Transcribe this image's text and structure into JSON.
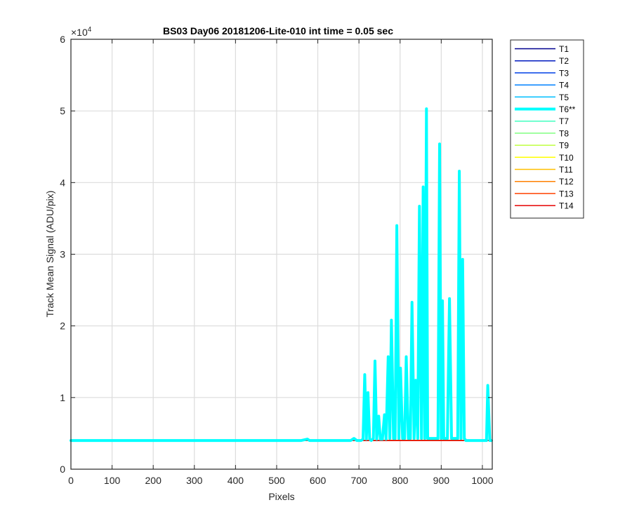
{
  "chart_data": {
    "type": "line",
    "title": "BS03 Day06 20181206-Lite-010 int time = 0.05 sec",
    "xlabel": "Pixels",
    "ylabel": "Track Mean Signal (ADU/pix)",
    "xlim": [
      0,
      1024
    ],
    "ylim": [
      0,
      60000
    ],
    "xticks": [
      0,
      100,
      200,
      300,
      400,
      500,
      600,
      700,
      800,
      900,
      1000
    ],
    "yticks": [
      0,
      10000,
      20000,
      30000,
      40000,
      50000,
      60000
    ],
    "ytick_labels": [
      "0",
      "1",
      "2",
      "3",
      "4",
      "5",
      "6"
    ],
    "y_exponent_base": "×10",
    "y_exponent": "4",
    "grid": true,
    "legend_location": "outside-top-right",
    "baseline_value": 4000,
    "series": [
      {
        "name": "T1",
        "color": "#00008f",
        "values_constant": 4000
      },
      {
        "name": "T2",
        "color": "#0019bf",
        "values_constant": 4000
      },
      {
        "name": "T3",
        "color": "#0040e6",
        "values_constant": 4000
      },
      {
        "name": "T4",
        "color": "#0080ff",
        "values_constant": 4000
      },
      {
        "name": "T5",
        "color": "#00bfff",
        "values_constant": 4000
      },
      {
        "name": "T6**",
        "color": "#00ffff",
        "highlight": true,
        "x": [
          0,
          560,
          575,
          580,
          600,
          680,
          688,
          695,
          705,
          710,
          714,
          718,
          722,
          726,
          730,
          735,
          739,
          743,
          748,
          752,
          757,
          762,
          766,
          771,
          775,
          779,
          784,
          788,
          792,
          797,
          801,
          806,
          811,
          815,
          820,
          825,
          829,
          834,
          838,
          843,
          847,
          852,
          856,
          860,
          864,
          867,
          870,
          873,
          876,
          880,
          884,
          888,
          892,
          896,
          900,
          903,
          906,
          910,
          915,
          920,
          925,
          930,
          935,
          940,
          944,
          948,
          952,
          956,
          960,
          970,
          990,
          1005,
          1010,
          1013,
          1018,
          1022
        ],
        "values": [
          4000,
          4000,
          4200,
          4000,
          4000,
          4000,
          4300,
          4000,
          4000,
          4200,
          13200,
          4200,
          10700,
          4200,
          4000,
          4300,
          15100,
          4200,
          7400,
          4200,
          4200,
          7600,
          4200,
          15700,
          4300,
          20800,
          4300,
          4300,
          34000,
          4300,
          14100,
          4300,
          4300,
          15700,
          4300,
          4300,
          23300,
          4300,
          12400,
          4300,
          36700,
          4300,
          39400,
          4300,
          50300,
          4300,
          4300,
          4300,
          4300,
          4300,
          4300,
          4300,
          4300,
          45400,
          4300,
          23500,
          4300,
          4300,
          4300,
          23800,
          4300,
          4300,
          4300,
          4300,
          41600,
          4300,
          29300,
          4300,
          4000,
          4000,
          4000,
          4000,
          4000,
          11700,
          4000,
          4000
        ]
      },
      {
        "name": "T7",
        "color": "#40ffbf",
        "values_constant": 4000
      },
      {
        "name": "T8",
        "color": "#80ff80",
        "values_constant": 4000
      },
      {
        "name": "T9",
        "color": "#bfff40",
        "values_constant": 4000
      },
      {
        "name": "T10",
        "color": "#ffff00",
        "values_constant": 4000
      },
      {
        "name": "T11",
        "color": "#ffbf00",
        "values_constant": 4000
      },
      {
        "name": "T12",
        "color": "#ff8000",
        "values_constant": 4000
      },
      {
        "name": "T13",
        "color": "#ff4000",
        "values_constant": 4000
      },
      {
        "name": "T14",
        "color": "#e60000",
        "values_constant": 4000
      }
    ]
  }
}
